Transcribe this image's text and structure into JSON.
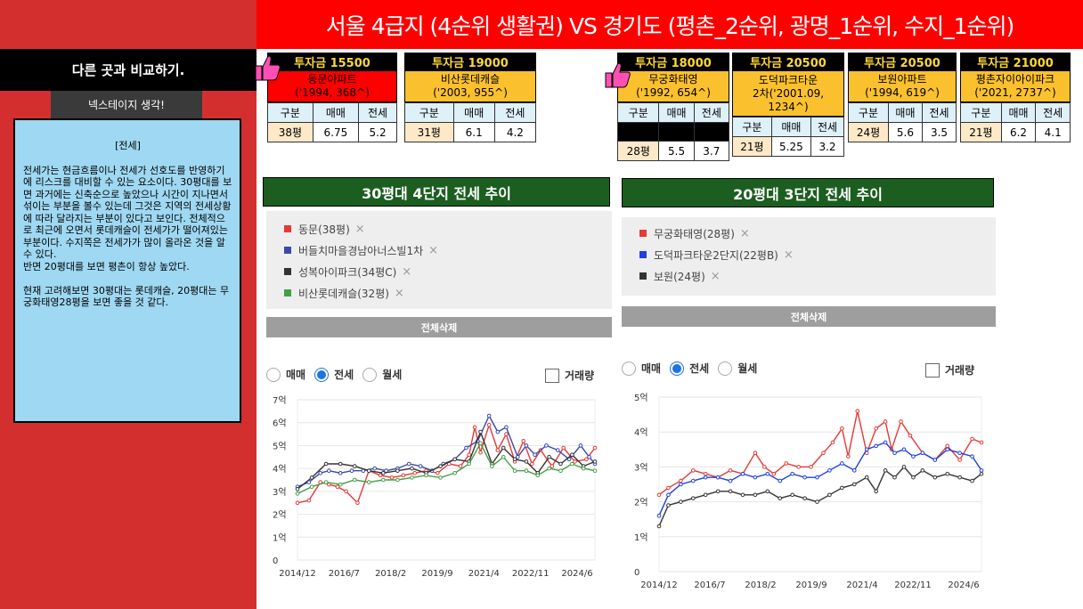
{
  "banner": {
    "title": "서울 4급지 (4순위 생활권) VS 경기도 (평촌_2순위, 광명_1순위, 수지_1순위)"
  },
  "sidebar": {
    "compare_label": "다른 곳과 비교하기.",
    "nexus_label": "넥스테이지 생각!",
    "memo_title": "[전세]",
    "memo_body": "전세가는 현금흐름이나 전세가 선호도를 반영하기에 리스크를 대비할 수 있는 요소이다. 30평대를 보면 과거에는 신축순으로 높았으나 시간이 지나면서 섞이는 부분을 볼수 있는데 그것은 지역의 전세상황에 따라 달라지는 부분이 있다고 보인다. 전체적으로 최근에 오면서 롯데캐슬이 전세가가 떨어져있는 부분이다. 수지쪽은 전세가가 많이 올라온 것을 알수 있다.\n반면 20평대를 보면 평촌이 항상 높았다.\n\n현재 고려해보면 30평대는 롯데캐슬, 20평대는 무궁화태영28평을 보면 좋을 것 같다."
  },
  "table_headers": [
    "구분",
    "매매",
    "전세"
  ],
  "cards": [
    {
      "price": "투자금 15500",
      "name1": "동문아파트",
      "name2": "('1994, 368^)",
      "pyeong": "38평",
      "sale": "6.75",
      "jeonse": "5.2"
    },
    {
      "price": "투자금 19000",
      "name1": "비산롯데캐슬",
      "name2": "('2003, 955^)",
      "pyeong": "31평",
      "sale": "6.1",
      "jeonse": "4.2"
    },
    {
      "price": "투자금 18000",
      "name1": "무궁화태영",
      "name2": "('1992, 654^)",
      "pyeong": "28평",
      "sale": "5.5",
      "jeonse": "3.7"
    },
    {
      "price": "투자금 20500",
      "name1": "도덕파크타운",
      "name2": "2차('2001.09,",
      "name3": "1234^)",
      "pyeong": "21평",
      "sale": "5.25",
      "jeonse": "3.2"
    },
    {
      "price": "투자금 20500",
      "name1": "보원아파트",
      "name2": "('1994, 619^)",
      "pyeong": "24평",
      "sale": "5.6",
      "jeonse": "3.5"
    },
    {
      "price": "투자금 21000",
      "name1": "평촌자이아이파크",
      "name2": "('2021, 2737^)",
      "pyeong": "21평",
      "sale": "6.2",
      "jeonse": "4.1"
    }
  ],
  "left_panel": {
    "title": "30평대 4단지 전세 추이",
    "legend": [
      {
        "label": "동문(38평)",
        "color": "#e53935"
      },
      {
        "label": "버들치마을경남아너스빌1차",
        "color": "#3949ab"
      },
      {
        "label": "성복아이파크(34평C)",
        "color": "#333333"
      },
      {
        "label": "비산롯데캐슬(32평)",
        "color": "#43a047"
      }
    ],
    "delete_all": "전체삭제"
  },
  "right_panel": {
    "title": "20평대 3단지 전세 추이",
    "legend": [
      {
        "label": "무궁화태영(28평)",
        "color": "#e53935"
      },
      {
        "label": "도덕파크타운2단지(22평B)",
        "color": "#1e40e0"
      },
      {
        "label": "보원(24평)",
        "color": "#333333"
      }
    ],
    "delete_all": "전체삭제"
  },
  "controls": {
    "radio_sale": "매매",
    "radio_jeonse": "전세",
    "radio_monthly": "월세",
    "volume": "거래량",
    "selected": "전세"
  },
  "remove_icon": "×",
  "chart_data": [
    {
      "type": "line",
      "title": "30평대 4단지 전세 추이",
      "x_ticks": [
        "2014/12",
        "2016/7",
        "2018/2",
        "2019/9",
        "2021/4",
        "2022/11",
        "2024/6"
      ],
      "y_ticks": [
        "0",
        "1억",
        "2억",
        "3억",
        "4억",
        "5억",
        "6억",
        "7억"
      ],
      "xlim": [
        2014.9,
        2025.3
      ],
      "ylim": [
        0,
        7
      ],
      "series": [
        {
          "name": "동문(38평)",
          "color": "#e53935",
          "x": [
            2014.9,
            2015.3,
            2015.7,
            2016.0,
            2016.3,
            2016.6,
            2017.0,
            2017.4,
            2017.8,
            2018.2,
            2018.6,
            2019.0,
            2019.4,
            2019.8,
            2020.2,
            2020.6,
            2020.9,
            2021.1,
            2021.3,
            2021.6,
            2021.9,
            2022.2,
            2022.5,
            2022.8,
            2023.1,
            2023.4,
            2023.8,
            2024.2,
            2024.6,
            2025.0,
            2025.3
          ],
          "y": [
            2.5,
            2.6,
            3.4,
            3.3,
            3.2,
            3.0,
            2.5,
            3.9,
            3.7,
            3.6,
            3.7,
            3.8,
            3.9,
            3.8,
            4.2,
            4.1,
            4.6,
            5.8,
            4.7,
            5.9,
            4.8,
            5.5,
            4.3,
            5.2,
            4.2,
            4.8,
            4.1,
            4.9,
            4.3,
            4.4,
            4.9
          ]
        },
        {
          "name": "버들치마을경남아너스빌1차",
          "color": "#3949ab",
          "x": [
            2014.9,
            2015.3,
            2015.7,
            2016.0,
            2016.4,
            2016.8,
            2017.2,
            2017.6,
            2018.0,
            2018.4,
            2018.8,
            2019.2,
            2019.6,
            2020.0,
            2020.4,
            2020.8,
            2021.2,
            2021.6,
            2021.9,
            2022.2,
            2022.6,
            2022.9,
            2023.2,
            2023.6,
            2024.0,
            2024.4,
            2024.8,
            2025.1,
            2025.3
          ],
          "y": [
            3.2,
            3.4,
            3.8,
            3.9,
            3.8,
            3.9,
            3.9,
            4.0,
            3.9,
            4.0,
            4.2,
            4.1,
            3.9,
            4.2,
            4.4,
            4.9,
            5.2,
            6.3,
            5.6,
            5.8,
            4.5,
            5.0,
            4.6,
            5.0,
            4.8,
            4.4,
            5.0,
            4.5,
            4.2
          ]
        },
        {
          "name": "성복아이파크(34평C)",
          "color": "#333333",
          "x": [
            2014.9,
            2015.4,
            2015.9,
            2016.4,
            2016.9,
            2017.4,
            2017.9,
            2018.4,
            2018.9,
            2019.4,
            2019.9,
            2020.4,
            2020.9,
            2021.3,
            2021.7,
            2022.1,
            2022.5,
            2022.9,
            2023.3,
            2023.7,
            2024.1,
            2024.5,
            2024.9,
            2025.3
          ],
          "y": [
            3.1,
            3.6,
            4.2,
            4.2,
            4.1,
            3.9,
            3.8,
            3.9,
            4.0,
            3.8,
            4.1,
            4.4,
            4.3,
            5.6,
            4.2,
            4.9,
            4.4,
            4.3,
            3.8,
            4.5,
            4.2,
            4.6,
            4.1,
            4.3
          ]
        },
        {
          "name": "비산롯데캐슬(32평)",
          "color": "#43a047",
          "x": [
            2014.9,
            2015.4,
            2015.9,
            2016.4,
            2016.9,
            2017.4,
            2017.9,
            2018.4,
            2018.9,
            2019.4,
            2019.9,
            2020.4,
            2020.9,
            2021.3,
            2021.7,
            2022.1,
            2022.5,
            2022.9,
            2023.3,
            2023.7,
            2024.1,
            2024.5,
            2024.9,
            2025.3
          ],
          "y": [
            2.9,
            3.2,
            3.4,
            3.3,
            3.5,
            3.4,
            3.5,
            3.5,
            3.6,
            3.7,
            3.6,
            3.8,
            4.2,
            5.1,
            4.1,
            4.5,
            3.9,
            3.9,
            3.7,
            4.0,
            3.9,
            4.2,
            4.0,
            3.9
          ]
        }
      ]
    },
    {
      "type": "line",
      "title": "20평대 3단지 전세 추이",
      "x_ticks": [
        "2014/12",
        "2016/7",
        "2018/2",
        "2019/9",
        "2021/4",
        "2022/11",
        "2024/6"
      ],
      "y_ticks": [
        "0",
        "1억",
        "2억",
        "3억",
        "4억",
        "5억"
      ],
      "xlim": [
        2014.9,
        2025.3
      ],
      "ylim": [
        0,
        5
      ],
      "series": [
        {
          "name": "무궁화태영(28평)",
          "color": "#e53935",
          "x": [
            2014.9,
            2015.2,
            2015.6,
            2016.0,
            2016.4,
            2016.8,
            2017.2,
            2017.6,
            2018.0,
            2018.3,
            2018.6,
            2019.0,
            2019.4,
            2019.8,
            2020.2,
            2020.5,
            2020.8,
            2021.0,
            2021.3,
            2021.6,
            2021.9,
            2022.2,
            2022.4,
            2022.7,
            2023.0,
            2023.4,
            2023.8,
            2024.2,
            2024.6,
            2025.0,
            2025.3
          ],
          "y": [
            2.2,
            2.4,
            2.6,
            2.9,
            2.8,
            2.7,
            2.9,
            2.8,
            3.4,
            3.0,
            2.8,
            3.1,
            3.0,
            3.0,
            3.4,
            3.7,
            4.1,
            3.3,
            4.6,
            3.4,
            4.1,
            4.3,
            3.5,
            4.3,
            3.9,
            3.4,
            3.2,
            3.6,
            3.2,
            3.8,
            3.7
          ]
        },
        {
          "name": "도덕파크타운2단지(22평B)",
          "color": "#1e40e0",
          "x": [
            2014.9,
            2015.2,
            2015.6,
            2016.0,
            2016.4,
            2016.8,
            2017.2,
            2017.6,
            2018.0,
            2018.4,
            2018.8,
            2019.2,
            2019.6,
            2020.0,
            2020.4,
            2020.8,
            2021.2,
            2021.6,
            2021.9,
            2022.2,
            2022.5,
            2022.8,
            2023.1,
            2023.4,
            2023.8,
            2024.2,
            2024.6,
            2025.0,
            2025.3
          ],
          "y": [
            1.6,
            2.2,
            2.5,
            2.6,
            2.7,
            2.7,
            2.6,
            2.8,
            2.7,
            2.8,
            2.6,
            2.8,
            2.7,
            2.7,
            2.9,
            3.1,
            2.9,
            3.5,
            3.6,
            3.7,
            3.4,
            3.5,
            3.3,
            3.4,
            3.2,
            3.5,
            3.4,
            3.3,
            2.9
          ]
        },
        {
          "name": "보원(24평)",
          "color": "#333333",
          "x": [
            2014.9,
            2015.2,
            2015.6,
            2016.0,
            2016.4,
            2016.8,
            2017.2,
            2017.6,
            2018.0,
            2018.4,
            2018.8,
            2019.2,
            2019.6,
            2020.0,
            2020.4,
            2020.8,
            2021.2,
            2021.6,
            2021.9,
            2022.2,
            2022.5,
            2022.8,
            2023.1,
            2023.4,
            2023.8,
            2024.2,
            2024.6,
            2025.0,
            2025.3
          ],
          "y": [
            1.3,
            1.9,
            2.0,
            2.1,
            2.2,
            2.3,
            2.3,
            2.2,
            2.2,
            2.3,
            2.1,
            2.2,
            2.1,
            2.0,
            2.2,
            2.4,
            2.5,
            2.7,
            2.3,
            2.9,
            2.7,
            3.0,
            2.7,
            2.9,
            2.7,
            2.8,
            2.7,
            2.6,
            2.8
          ]
        }
      ]
    }
  ]
}
